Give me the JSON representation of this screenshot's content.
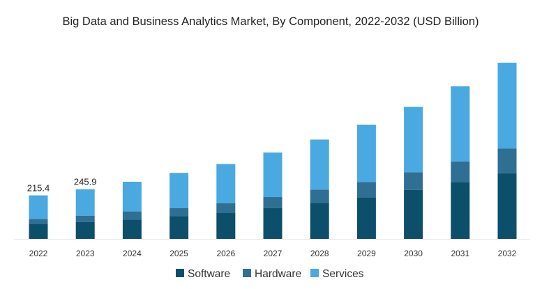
{
  "chart_data": {
    "type": "bar",
    "stacked": true,
    "title": "Big Data and Business Analytics Market, By Component, 2022-2032 (USD Billion)",
    "xlabel": "",
    "ylabel": "",
    "ylim": [
      0,
      880
    ],
    "grid": false,
    "legend_position": "bottom",
    "categories": [
      "2022",
      "2023",
      "2024",
      "2025",
      "2026",
      "2027",
      "2028",
      "2029",
      "2030",
      "2031",
      "2032"
    ],
    "series": [
      {
        "name": "Software",
        "color": "#0c4f6b",
        "values": [
          75,
          84,
          96,
          112,
          130,
          152,
          178,
          206,
          242,
          282,
          325
        ]
      },
      {
        "name": "Hardware",
        "color": "#2f6f93",
        "values": [
          23,
          31,
          40,
          41,
          47,
          55,
          66,
          76,
          88,
          102,
          123
        ]
      },
      {
        "name": "Services",
        "color": "#49a9e0",
        "values": [
          117.4,
          130.9,
          147,
          174,
          194,
          221,
          248,
          284,
          324,
          372,
          425
        ]
      }
    ],
    "data_labels": [
      {
        "category": "2022",
        "text": "215.4"
      },
      {
        "category": "2023",
        "text": "245.9"
      }
    ]
  }
}
